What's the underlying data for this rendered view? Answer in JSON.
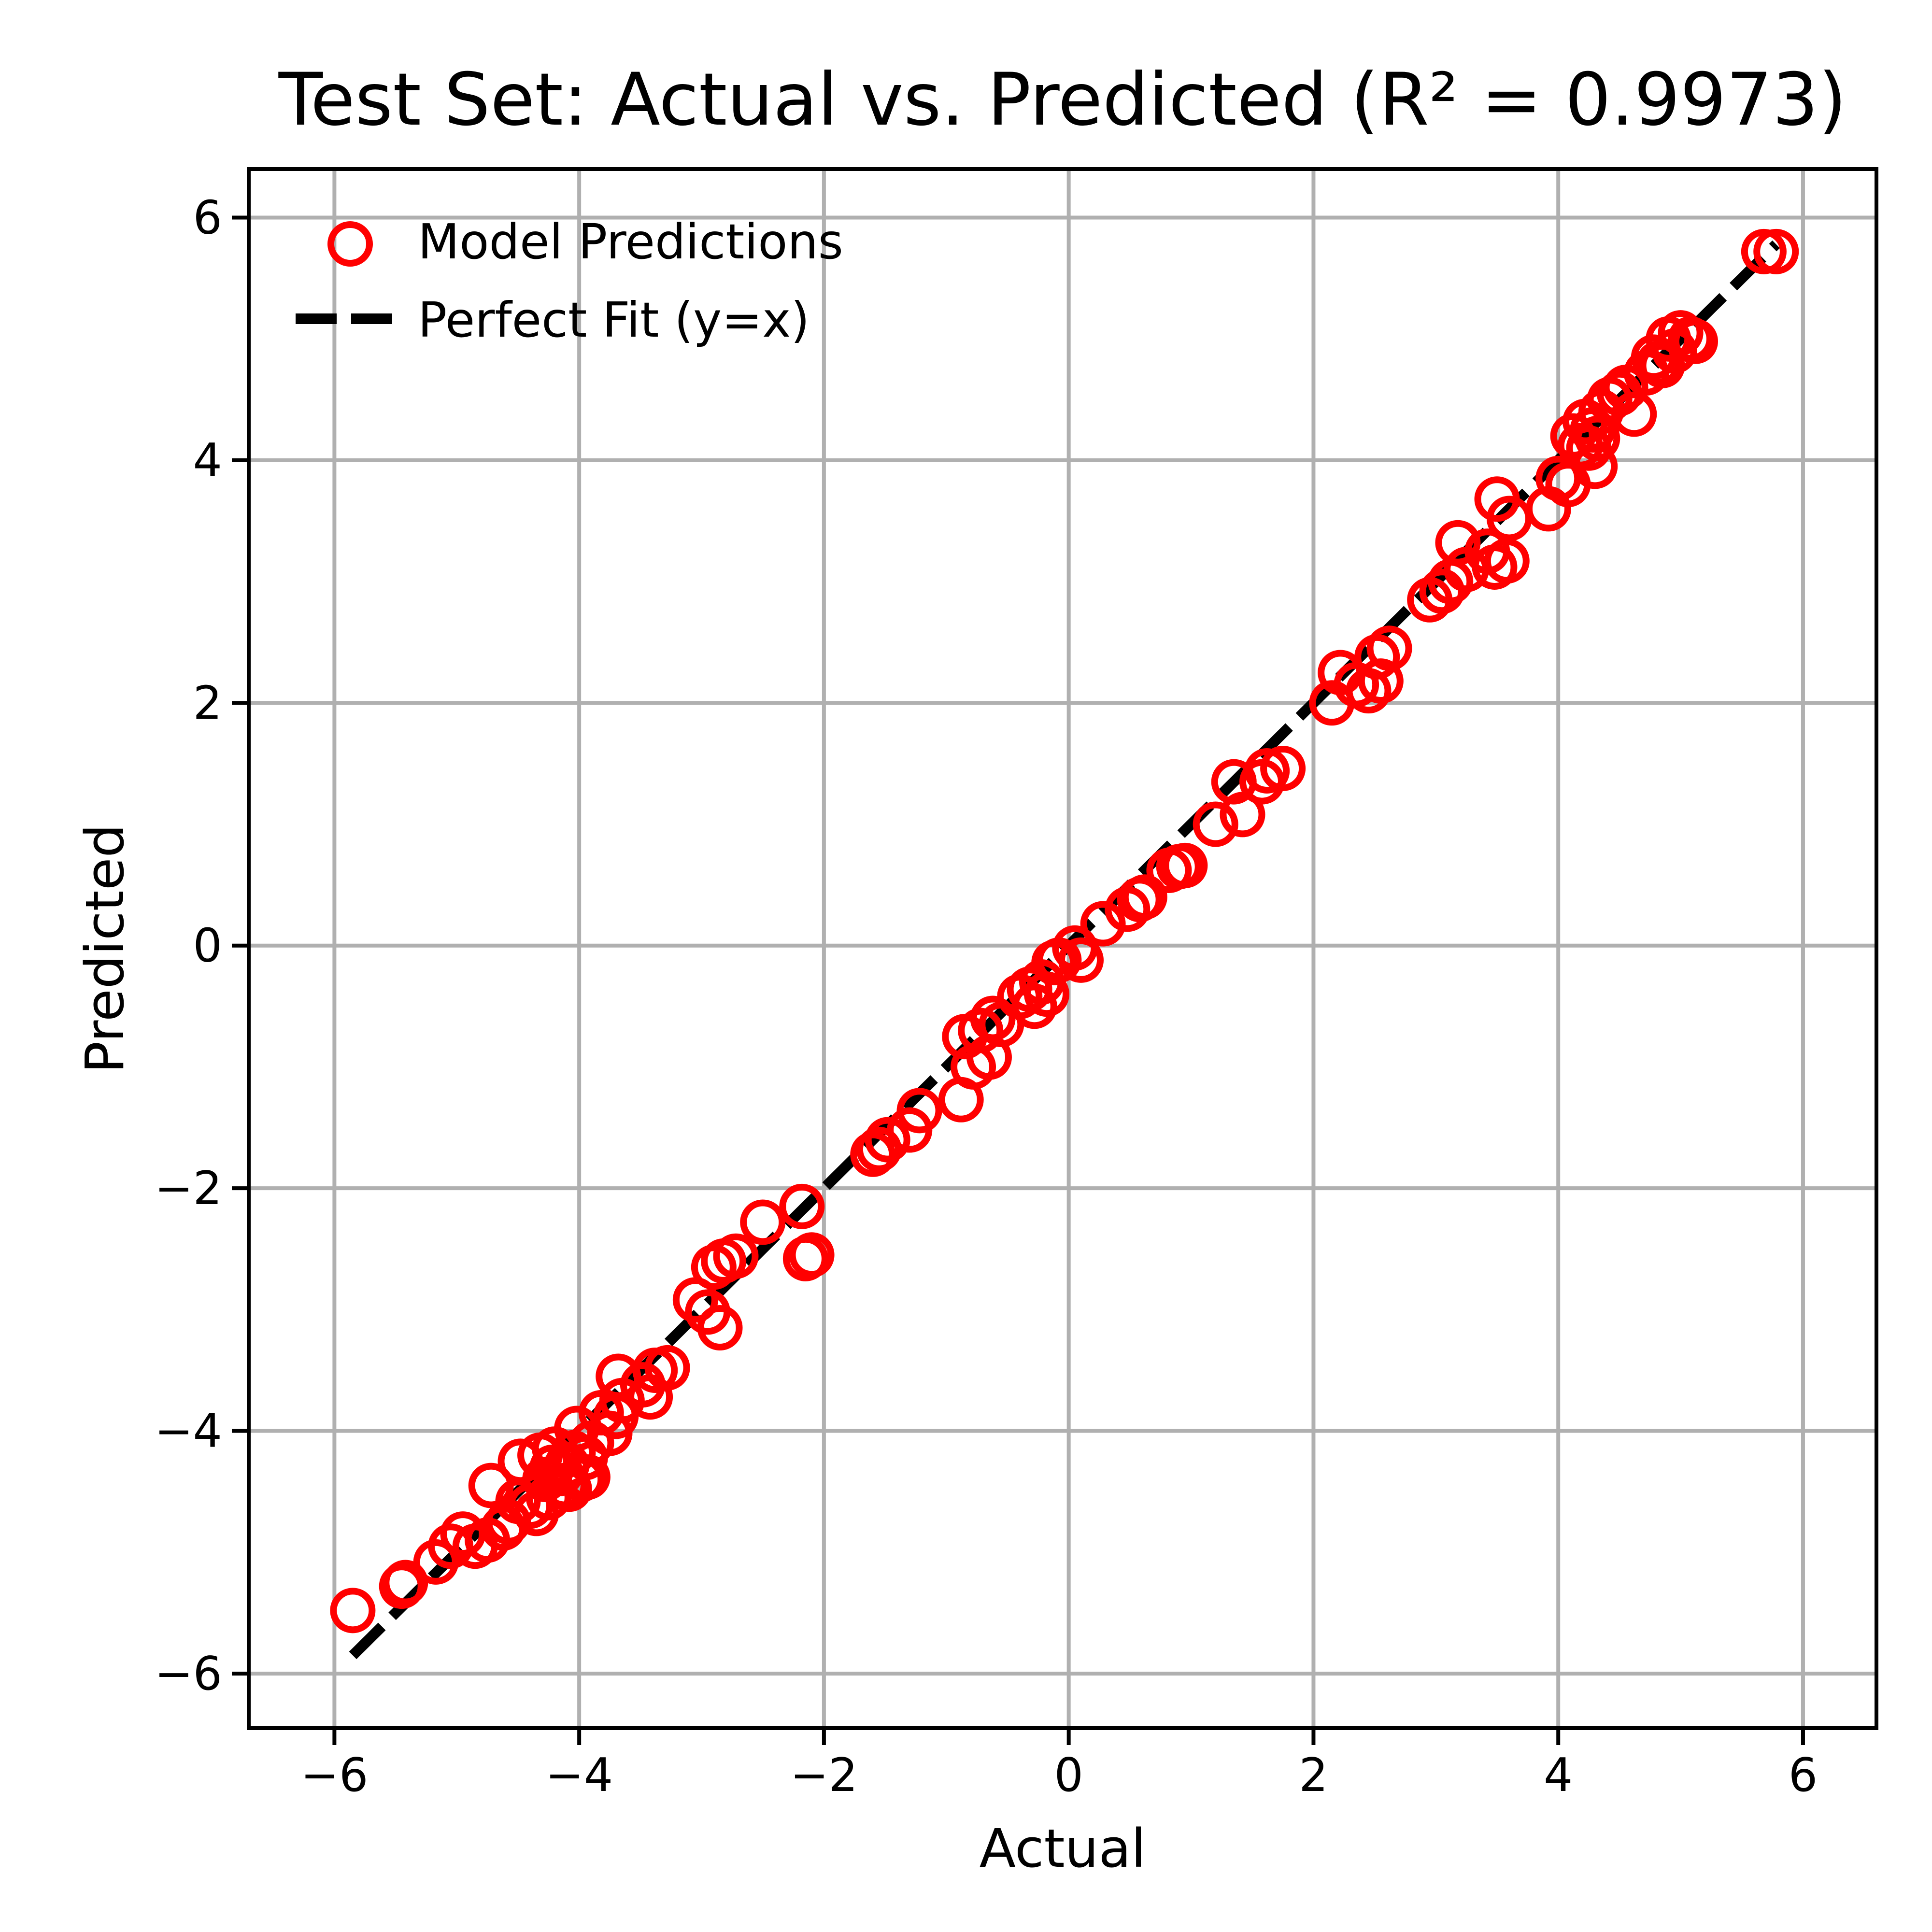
{
  "chart_data": {
    "type": "scatter",
    "title": "Test Set: Actual vs. Predicted (R² = 0.9973)",
    "xlabel": "Actual",
    "ylabel": "Predicted",
    "xlim": [
      -6.7,
      6.6
    ],
    "ylim": [
      -6.45,
      6.4
    ],
    "xticks": [
      -6,
      -4,
      -2,
      0,
      2,
      4,
      6
    ],
    "yticks": [
      -6,
      -4,
      -2,
      0,
      2,
      4,
      6
    ],
    "xtick_labels": [
      "−6",
      "−4",
      "−2",
      "0",
      "2",
      "4",
      "6"
    ],
    "ytick_labels": [
      "−6",
      "−4",
      "−2",
      "0",
      "2",
      "4",
      "6"
    ],
    "grid": true,
    "legend_position": "top-left",
    "series": [
      {
        "name": "Model Predictions",
        "marker": "open-circle",
        "color": "#ff0000",
        "points": [
          [
            -5.85,
            -5.48
          ],
          [
            -5.45,
            -5.28
          ],
          [
            -5.42,
            -5.25
          ],
          [
            -5.17,
            -5.08
          ],
          [
            -5.05,
            -4.95
          ],
          [
            -4.95,
            -4.85
          ],
          [
            -4.85,
            -4.95
          ],
          [
            -4.75,
            -4.9
          ],
          [
            -4.72,
            -4.45
          ],
          [
            -4.62,
            -4.8
          ],
          [
            -4.58,
            -4.75
          ],
          [
            -4.5,
            -4.58
          ],
          [
            -4.48,
            -4.25
          ],
          [
            -4.4,
            -4.62
          ],
          [
            -4.35,
            -4.68
          ],
          [
            -4.32,
            -4.2
          ],
          [
            -4.28,
            -4.4
          ],
          [
            -4.25,
            -4.55
          ],
          [
            -4.22,
            -4.3
          ],
          [
            -4.2,
            -4.15
          ],
          [
            -4.15,
            -4.35
          ],
          [
            -4.12,
            -4.45
          ],
          [
            -4.1,
            -4.28
          ],
          [
            -4.08,
            -4.48
          ],
          [
            -4.05,
            -4.18
          ],
          [
            -4.02,
            -3.98
          ],
          [
            -3.98,
            -4.4
          ],
          [
            -3.95,
            -4.22
          ],
          [
            -3.93,
            -4.38
          ],
          [
            -3.9,
            -4.1
          ],
          [
            -3.82,
            -3.85
          ],
          [
            -3.75,
            -4.02
          ],
          [
            -3.7,
            -3.88
          ],
          [
            -3.68,
            -3.55
          ],
          [
            -3.65,
            -3.75
          ],
          [
            -3.48,
            -3.62
          ],
          [
            -3.42,
            -3.72
          ],
          [
            -3.38,
            -3.5
          ],
          [
            -3.28,
            -3.48
          ],
          [
            -3.05,
            -2.92
          ],
          [
            -2.95,
            -3.02
          ],
          [
            -2.9,
            -2.65
          ],
          [
            -2.85,
            -3.15
          ],
          [
            -2.82,
            -2.6
          ],
          [
            -2.72,
            -2.56
          ],
          [
            -2.5,
            -2.28
          ],
          [
            -2.18,
            -2.15
          ],
          [
            -2.15,
            -2.58
          ],
          [
            -2.1,
            -2.55
          ],
          [
            -1.6,
            -1.72
          ],
          [
            -1.55,
            -1.68
          ],
          [
            -1.48,
            -1.6
          ],
          [
            -1.3,
            -1.52
          ],
          [
            -1.22,
            -1.36
          ],
          [
            -0.88,
            -1.27
          ],
          [
            -0.85,
            -0.75
          ],
          [
            -0.78,
            -1.0
          ],
          [
            -0.72,
            -0.7
          ],
          [
            -0.65,
            -0.92
          ],
          [
            -0.62,
            -0.6
          ],
          [
            -0.55,
            -0.65
          ],
          [
            -0.4,
            -0.42
          ],
          [
            -0.32,
            -0.36
          ],
          [
            -0.28,
            -0.5
          ],
          [
            -0.22,
            -0.3
          ],
          [
            -0.18,
            -0.4
          ],
          [
            -0.12,
            -0.14
          ],
          [
            -0.08,
            -0.12
          ],
          [
            0.05,
            -0.02
          ],
          [
            0.1,
            -0.12
          ],
          [
            0.28,
            0.18
          ],
          [
            0.48,
            0.3
          ],
          [
            0.58,
            0.38
          ],
          [
            0.62,
            0.4
          ],
          [
            0.82,
            0.62
          ],
          [
            0.9,
            0.65
          ],
          [
            0.95,
            0.66
          ],
          [
            1.2,
            1.0
          ],
          [
            1.35,
            1.35
          ],
          [
            1.42,
            1.08
          ],
          [
            1.58,
            1.35
          ],
          [
            1.62,
            1.44
          ],
          [
            1.75,
            1.46
          ],
          [
            2.15,
            2.0
          ],
          [
            2.22,
            2.25
          ],
          [
            2.35,
            2.15
          ],
          [
            2.45,
            2.1
          ],
          [
            2.52,
            2.38
          ],
          [
            2.55,
            2.18
          ],
          [
            2.62,
            2.45
          ],
          [
            2.95,
            2.85
          ],
          [
            3.05,
            2.92
          ],
          [
            3.12,
            3.0
          ],
          [
            3.18,
            3.32
          ],
          [
            3.25,
            3.1
          ],
          [
            3.42,
            3.25
          ],
          [
            3.48,
            3.12
          ],
          [
            3.5,
            3.68
          ],
          [
            3.58,
            3.17
          ],
          [
            3.6,
            3.52
          ],
          [
            3.92,
            3.6
          ],
          [
            4.0,
            3.85
          ],
          [
            4.08,
            3.8
          ],
          [
            4.12,
            4.2
          ],
          [
            4.18,
            4.12
          ],
          [
            4.22,
            4.32
          ],
          [
            4.25,
            4.1
          ],
          [
            4.28,
            4.25
          ],
          [
            4.3,
            3.95
          ],
          [
            4.32,
            4.18
          ],
          [
            4.35,
            4.4
          ],
          [
            4.42,
            4.5
          ],
          [
            4.5,
            4.55
          ],
          [
            4.55,
            4.6
          ],
          [
            4.62,
            4.38
          ],
          [
            4.72,
            4.72
          ],
          [
            4.78,
            4.85
          ],
          [
            4.82,
            4.8
          ],
          [
            4.85,
            4.78
          ],
          [
            4.9,
            5.0
          ],
          [
            4.95,
            4.9
          ],
          [
            5.0,
            5.05
          ],
          [
            5.08,
            5.0
          ],
          [
            5.12,
            4.98
          ],
          [
            5.68,
            5.72
          ],
          [
            5.78,
            5.72
          ]
        ]
      },
      {
        "name": "Perfect Fit (y=x)",
        "style": "dashed-line",
        "color": "#000000",
        "x": [
          -5.85,
          5.78
        ],
        "y": [
          -5.85,
          5.78
        ]
      }
    ]
  }
}
